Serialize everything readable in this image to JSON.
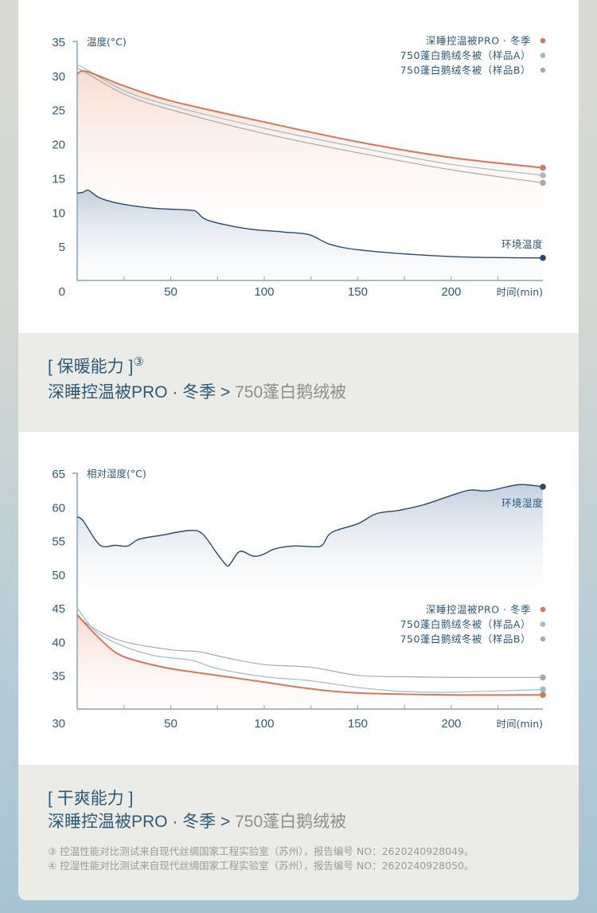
{
  "colors": {
    "pro": "#d4775c",
    "sample_a": "#9dbcc4",
    "sample_b": "#a9a9a9",
    "ambient": "#2a4a6b"
  },
  "section1": {
    "title": "[ 保暖能力 ]",
    "title_note": "③",
    "compare_main": "深睡控温被PRO · 冬季",
    "compare_sep": " > ",
    "compare_other": "750蓬白鹅绒被"
  },
  "section2": {
    "title": "[ 干爽能力 ]",
    "compare_main": "深睡控温被PRO · 冬季",
    "compare_sep": " > ",
    "compare_other": "750蓬白鹅绒被"
  },
  "footnotes": [
    "③ 控温性能对比测试来自现代丝绸国家工程实验室（苏州），报告编号 NO：2620240928049。",
    "④ 控湿性能对比测试来自现代丝绸国家工程实验室（苏州），报告编号 NO：2620240928050。"
  ],
  "chart_data": [
    {
      "type": "line",
      "ylabel": "温度(°C)",
      "xlabel": "时间(min)",
      "ylim": [
        0,
        35
      ],
      "xlim": [
        0,
        249
      ],
      "yticks": [
        "35",
        "30",
        "25",
        "20",
        "15",
        "10",
        "5",
        "0"
      ],
      "xticks": [
        "50",
        "100",
        "150",
        "200"
      ],
      "legend": [
        "深睡控温被PRO · 冬季",
        "750蓬白鹅绒冬被（样品A）",
        "750蓬白鹅绒冬被（样品B）"
      ],
      "ambient_label": "环境温度",
      "series": [
        {
          "name": "深睡控温被PRO · 冬季",
          "key": "pro",
          "x": [
            0,
            5,
            25,
            50,
            100,
            150,
            200,
            249
          ],
          "y": [
            30.2,
            30.6,
            28.5,
            26.3,
            23.2,
            20.3,
            18,
            16.5
          ]
        },
        {
          "name": "750蓬白鹅绒冬被（样品A）",
          "key": "sample_a",
          "x": [
            0,
            3,
            25,
            50,
            100,
            150,
            200,
            249
          ],
          "y": [
            31.4,
            31.2,
            27.8,
            25.6,
            22.3,
            19.5,
            17,
            15.4
          ]
        },
        {
          "name": "750蓬白鹅绒冬被（样品B）",
          "key": "sample_b",
          "x": [
            0,
            3,
            25,
            50,
            100,
            150,
            200,
            249
          ],
          "y": [
            31.0,
            30.7,
            27.3,
            25.0,
            21.5,
            18.7,
            16.2,
            14.3
          ]
        },
        {
          "name": "环境温度",
          "key": "ambient",
          "x": [
            0,
            3,
            6,
            12,
            22,
            40,
            60,
            64,
            70,
            90,
            110,
            124,
            135,
            150,
            180,
            210,
            249
          ],
          "y": [
            12.8,
            12.9,
            13.2,
            12.1,
            11.3,
            10.6,
            10.3,
            10.0,
            8.8,
            7.6,
            7.1,
            6.7,
            5.3,
            4.5,
            3.8,
            3.4,
            3.3
          ]
        }
      ]
    },
    {
      "type": "line",
      "ylabel": "相对湿度(°C)",
      "xlabel": "时间(min)",
      "ylim": [
        30,
        65
      ],
      "xlim": [
        0,
        249
      ],
      "yticks": [
        "65",
        "60",
        "55",
        "50",
        "45",
        "40",
        "35",
        "30"
      ],
      "xticks": [
        "50",
        "100",
        "150",
        "200"
      ],
      "legend": [
        "深睡控温被PRO · 冬季",
        "750蓬白鹅绒冬被（样品A）",
        "750蓬白鹅绒冬被（样品B）"
      ],
      "ambient_label": "环境湿度",
      "series": [
        {
          "name": "环境湿度",
          "key": "ambient",
          "x": [
            0,
            3,
            10,
            14,
            20,
            27,
            33,
            45,
            60,
            67,
            75,
            80,
            82,
            87,
            94,
            99,
            106,
            116,
            126,
            131,
            136,
            150,
            160,
            172,
            185,
            200,
            210,
            220,
            236,
            249
          ],
          "y": [
            58.5,
            58,
            55,
            54.1,
            54.3,
            54.2,
            55.2,
            55.8,
            56.5,
            56,
            53,
            51.3,
            51.6,
            53.4,
            52.7,
            52.9,
            53.8,
            54.2,
            54.1,
            54.3,
            56.2,
            57.5,
            59,
            59.5,
            60.3,
            61.7,
            62.5,
            62.4,
            63.3,
            63
          ]
        },
        {
          "name": "深睡控温被PRO · 冬季",
          "key": "pro",
          "x": [
            0,
            10,
            20,
            30,
            50,
            75,
            100,
            125,
            150,
            200,
            249
          ],
          "y": [
            44,
            41,
            38.5,
            37.3,
            36,
            35,
            34,
            33,
            32.4,
            32.1,
            32.1
          ]
        },
        {
          "name": "750蓬白鹅绒冬被（样品A）",
          "key": "sample_a",
          "x": [
            0,
            10,
            25,
            40,
            50,
            62,
            75,
            100,
            125,
            150,
            175,
            200,
            249
          ],
          "y": [
            45,
            41.5,
            39.3,
            38,
            37.6,
            37.2,
            36,
            34.8,
            34.2,
            33.2,
            32.6,
            32.5,
            32.9
          ]
        },
        {
          "name": "750蓬白鹅绒冬被（样品B）",
          "key": "sample_b",
          "x": [
            0,
            10,
            25,
            50,
            65,
            80,
            100,
            125,
            150,
            175,
            200,
            249
          ],
          "y": [
            43.8,
            41.8,
            40,
            38.8,
            38.5,
            37.6,
            36.6,
            36.2,
            35,
            34.8,
            34.7,
            34.7
          ]
        }
      ]
    }
  ]
}
